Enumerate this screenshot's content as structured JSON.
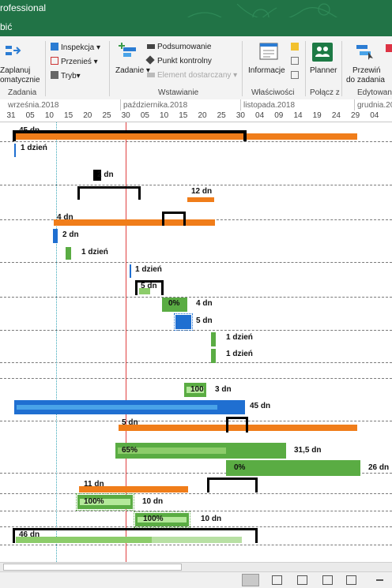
{
  "window": {
    "title_fragment": "rofessional"
  },
  "tab": {
    "label_fragment": "bić"
  },
  "ribbon": {
    "zadania": {
      "schedule_label_1": "Zaplanuj",
      "schedule_label_2": "omatycznie",
      "group_label": "Zadania"
    },
    "tasks_small": {
      "inspect": "Inspekcja",
      "move": "Przenieś",
      "mode": "Tryb"
    },
    "wstawianie": {
      "task": "Zadanie",
      "summary": "Podsumowanie",
      "milestone": "Punkt kontrolny",
      "deliverable": "Element dostarczany",
      "group_label": "Wstawianie"
    },
    "wlasciwosci": {
      "information": "Informacje",
      "group_label": "Właściwości"
    },
    "polacz": {
      "planner": "Planner",
      "group_label": "Połącz z"
    },
    "edytowanie": {
      "scroll_1": "Przewiń",
      "scroll_2": "do zadania",
      "group_label": "Edytowani"
    }
  },
  "timescale": {
    "months": [
      "września.2018",
      "października.2018",
      "listopada.2018",
      "grudnia.2018"
    ],
    "days": [
      "31",
      "05",
      "10",
      "15",
      "20",
      "25",
      "30",
      "05",
      "10",
      "15",
      "20",
      "25",
      "30",
      "04",
      "09",
      "14",
      "19",
      "24",
      "29",
      "04"
    ]
  },
  "gantt": {
    "labels": {
      "r1": "45 dn",
      "r2": "1 dzień",
      "r3": "2 dn",
      "r4": "12 dn",
      "r5": "4 dn",
      "r6": "2 dn",
      "r7": "1 dzień",
      "r8": "1 dzień",
      "r9": "5 dn",
      "r10_pct": "0%",
      "r10": "4 dn",
      "r11": "5 dn",
      "r12": "1 dzień",
      "r13": "1 dzień",
      "r14_pct": "100",
      "r14": "3 dn",
      "r15": "45 dn",
      "r16": "5 dn",
      "r17_pct": "65%",
      "r17": "31,5 dn",
      "r18_pct": "0%",
      "r18": "26 dn",
      "r19": "11 dn",
      "r20_pct": "100%",
      "r20": "10 dn",
      "r21_pct": "100%",
      "r21": "10 dn",
      "r22": "46 dn"
    },
    "progress": {
      "r14": 1.0,
      "r15": 0.87,
      "r17": 0.65,
      "r18": 0.0,
      "r20": 1.0,
      "r21": 1.0,
      "r22": 0.6
    }
  },
  "colors": {
    "ribbon_green": "#217346",
    "summary_orange": "#f07d1a",
    "task_green": "#5aac43",
    "task_blue": "#1f6fd1",
    "today_line": "#e04040"
  }
}
